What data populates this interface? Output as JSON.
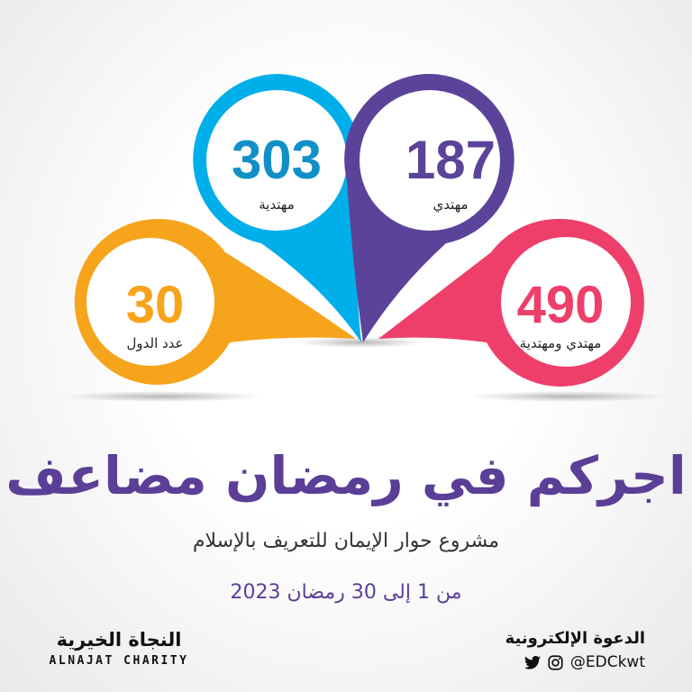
{
  "colors": {
    "blue": "#00aeea",
    "purple": "#5b439a",
    "orange": "#f6a41c",
    "pink": "#ee3e6a",
    "title": "#5b3f97"
  },
  "stats": [
    {
      "value": "303",
      "label": "مهتدية",
      "color": "#00aeea",
      "text_color": "#1190c8"
    },
    {
      "value": "187",
      "label": "مهتدي",
      "color": "#5b439a",
      "text_color": "#5b439a"
    },
    {
      "value": "30",
      "label": "عدد الدول",
      "color": "#f6a41c",
      "text_color": "#f6a41c"
    },
    {
      "value": "490",
      "label": "مهتدي ومهتدية",
      "color": "#ee3e6a",
      "text_color": "#ee3e6a"
    }
  ],
  "title": "اجركم في رمضان مضاعف",
  "subtitle": "مشروع حوار الإيمان للتعريف بالإسلام",
  "date": "من 1 إلى 30 رمضان 2023",
  "footer": {
    "left_logo_ar": "النجاة الخيرية",
    "left_logo_en": "ALNAJAT CHARITY",
    "right_org": "الدعوة الإلكترونية",
    "handle": "@EDCkwt",
    "icons": [
      "twitter-icon",
      "instagram-icon"
    ]
  }
}
